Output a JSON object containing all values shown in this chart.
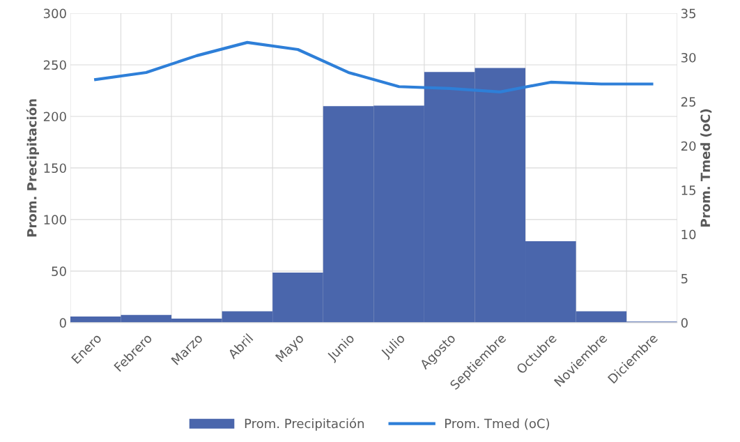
{
  "chart_data": {
    "type": "bar",
    "ylabel": "Prom. Precipitación",
    "y2label": "Prom. Tmed (oC)",
    "categories": [
      "Enero",
      "Febrero",
      "Marzo",
      "Abril",
      "Mayo",
      "Junio",
      "Julio",
      "Agosto",
      "Septiembre",
      "Octubre",
      "Noviembre",
      "Diciembre"
    ],
    "series": [
      {
        "name": "Prom. Precipitación",
        "color": "#4a66ac",
        "values": [
          6,
          7.5,
          4,
          11,
          48.5,
          210,
          210.5,
          243,
          247,
          79,
          11,
          1
        ]
      },
      {
        "name": "Prom. Tmed (oC)",
        "type": "line",
        "axis": "y2",
        "color": "#2e7fd8",
        "values": [
          27.5,
          28.3,
          30.2,
          31.7,
          30.9,
          28.3,
          26.7,
          26.5,
          26.1,
          27.2,
          27.0,
          27.0
        ]
      }
    ],
    "ylim": [
      0,
      300
    ],
    "yticks": [
      0,
      50,
      100,
      150,
      200,
      250,
      300
    ],
    "y2lim": [
      0,
      35
    ],
    "y2ticks": [
      0,
      5,
      10,
      15,
      20,
      25,
      30,
      35
    ],
    "grid": true,
    "legend": "bottom",
    "marker": "none",
    "line_style": "solid"
  }
}
